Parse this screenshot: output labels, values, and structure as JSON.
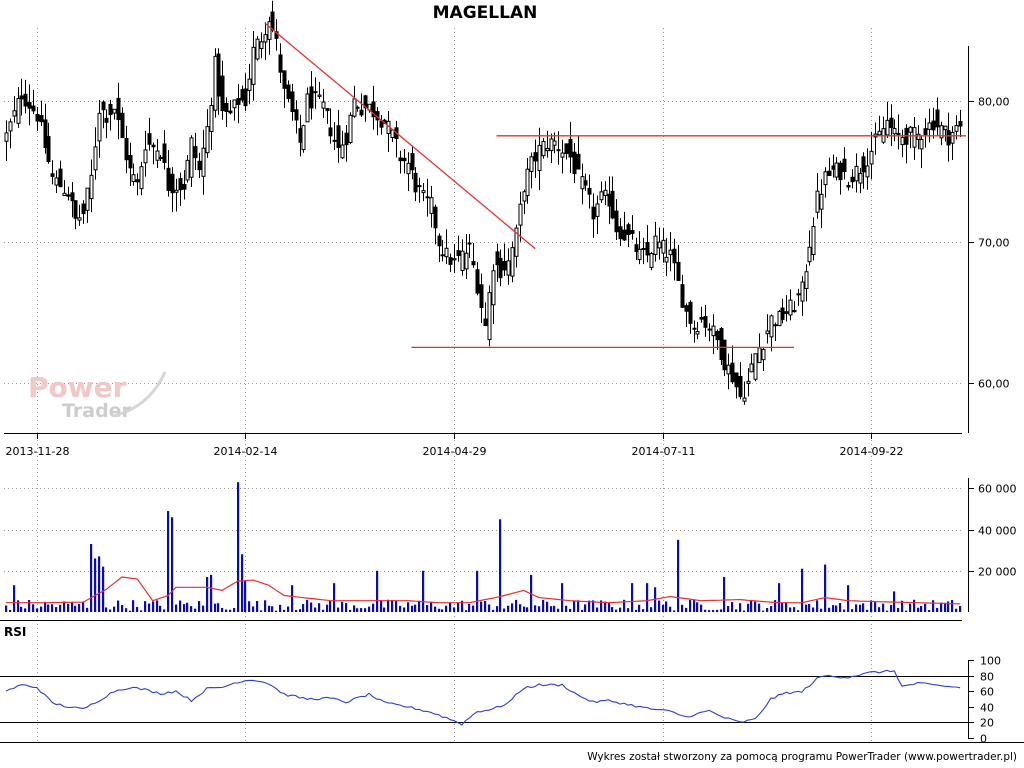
{
  "title": "MAGELLAN",
  "footer": "Wykres został stworzony za pomocą programu PowerTrader (www.powertrader.pl)",
  "watermark": {
    "line1": "Power",
    "line2": "Trader"
  },
  "colors": {
    "candle": "#000000",
    "trendline": "#e8302c",
    "volume": "#0b0bb3",
    "volume_avg": "#e8302c",
    "rsi": "#2b3fd8",
    "rsi_levels": "#000000"
  },
  "chart_data": [
    {
      "type": "candlestick",
      "title": "MAGELLAN",
      "x_ticks": [
        "2013-11-28",
        "2014-02-14",
        "2014-04-29",
        "2014-07-11",
        "2014-09-22"
      ],
      "x_tick_index": [
        8,
        62,
        116,
        170,
        224
      ],
      "y_ticks": [
        60,
        70,
        80
      ],
      "y_tick_labels": [
        "60,00",
        "70,00",
        "80,00"
      ],
      "ylim": [
        56.5,
        85
      ],
      "grid": true,
      "axis_side": "right",
      "anchors": [
        [
          0,
          77.5
        ],
        [
          4,
          80.5
        ],
        [
          8,
          79
        ],
        [
          12,
          74.5
        ],
        [
          14,
          74
        ],
        [
          16,
          73.5
        ],
        [
          18,
          71.5
        ],
        [
          20,
          72
        ],
        [
          22,
          74.5
        ],
        [
          24,
          79.5
        ],
        [
          26,
          79
        ],
        [
          28,
          79.5
        ],
        [
          32,
          75
        ],
        [
          34,
          74
        ],
        [
          36,
          77
        ],
        [
          40,
          76.5
        ],
        [
          42,
          74
        ],
        [
          46,
          74
        ],
        [
          48,
          77
        ],
        [
          50,
          75
        ],
        [
          52,
          78
        ],
        [
          54,
          82.5
        ],
        [
          56,
          79
        ],
        [
          58,
          79
        ],
        [
          60,
          80
        ],
        [
          62,
          80
        ],
        [
          64,
          83.5
        ],
        [
          66,
          84.5
        ],
        [
          68,
          86
        ],
        [
          70,
          84
        ],
        [
          72,
          80.5
        ],
        [
          74,
          79
        ],
        [
          76,
          77
        ],
        [
          78,
          80
        ],
        [
          80,
          80
        ],
        [
          82,
          79.5
        ],
        [
          84,
          78
        ],
        [
          86,
          76.5
        ],
        [
          88,
          77.5
        ],
        [
          90,
          80
        ],
        [
          92,
          79.5
        ],
        [
          94,
          79.5
        ],
        [
          96,
          79
        ],
        [
          98,
          78.5
        ],
        [
          100,
          77.5
        ],
        [
          102,
          76
        ],
        [
          104,
          75.5
        ],
        [
          106,
          74
        ],
        [
          108,
          73
        ],
        [
          110,
          72.5
        ],
        [
          112,
          70
        ],
        [
          114,
          69
        ],
        [
          116,
          68.5
        ],
        [
          118,
          69
        ],
        [
          120,
          69.5
        ],
        [
          122,
          67
        ],
        [
          124,
          64
        ],
        [
          126,
          68.5
        ],
        [
          128,
          68
        ],
        [
          130,
          68.5
        ],
        [
          132,
          70.5
        ],
        [
          134,
          74
        ],
        [
          136,
          75.5
        ],
        [
          138,
          76.5
        ],
        [
          140,
          77
        ],
        [
          142,
          77
        ],
        [
          144,
          76.5
        ],
        [
          146,
          76
        ],
        [
          148,
          74.5
        ],
        [
          150,
          73.5
        ],
        [
          152,
          72
        ],
        [
          154,
          73
        ],
        [
          156,
          73
        ],
        [
          158,
          71
        ],
        [
          160,
          70.5
        ],
        [
          162,
          70
        ],
        [
          164,
          69
        ],
        [
          166,
          69
        ],
        [
          168,
          70
        ],
        [
          170,
          69.5
        ],
        [
          172,
          69
        ],
        [
          174,
          67
        ],
        [
          176,
          65
        ],
        [
          178,
          64
        ],
        [
          180,
          64.5
        ],
        [
          182,
          64
        ],
        [
          184,
          63
        ],
        [
          186,
          61.5
        ],
        [
          188,
          60.5
        ],
        [
          190,
          59
        ],
        [
          192,
          60
        ],
        [
          194,
          62
        ],
        [
          196,
          63
        ],
        [
          198,
          64.5
        ],
        [
          200,
          64.5
        ],
        [
          202,
          65
        ],
        [
          204,
          65.5
        ],
        [
          206,
          66.5
        ],
        [
          208,
          70
        ],
        [
          210,
          73
        ],
        [
          212,
          74.5
        ],
        [
          214,
          75
        ],
        [
          216,
          75
        ],
        [
          218,
          74.5
        ],
        [
          220,
          75
        ],
        [
          222,
          75.5
        ],
        [
          224,
          76.5
        ],
        [
          226,
          77.5
        ],
        [
          228,
          78.5
        ],
        [
          230,
          77.5
        ],
        [
          232,
          77.5
        ],
        [
          234,
          77.5
        ],
        [
          236,
          77.5
        ],
        [
          238,
          78
        ],
        [
          240,
          78.5
        ],
        [
          242,
          78
        ],
        [
          244,
          77.5
        ],
        [
          246,
          78
        ]
      ],
      "last_close": 78,
      "annotations": {
        "downtrend": {
          "from": [
            67,
            85.5
          ],
          "to": [
            137,
            69.5
          ]
        },
        "resistance": {
          "level": 77.5,
          "from": 127,
          "to": 260
        },
        "support": {
          "level": 62.5,
          "from": 105,
          "to": 204
        }
      }
    },
    {
      "type": "bar",
      "series": [
        {
          "kind": "volume"
        },
        {
          "kind": "moving-average",
          "style": "line"
        }
      ],
      "y_ticks": [
        20000,
        40000,
        60000
      ],
      "y_tick_labels": [
        "20 000",
        "40 000",
        "60 000"
      ],
      "ylim": [
        0,
        66000
      ],
      "spikes": [
        [
          2,
          13000
        ],
        [
          22,
          33000
        ],
        [
          23,
          26000
        ],
        [
          24,
          27000
        ],
        [
          25,
          22000
        ],
        [
          42,
          49000
        ],
        [
          43,
          46000
        ],
        [
          52,
          17000
        ],
        [
          53,
          18000
        ],
        [
          60,
          63000
        ],
        [
          61,
          28000
        ],
        [
          62,
          15000
        ],
        [
          74,
          13000
        ],
        [
          85,
          14000
        ],
        [
          96,
          20000
        ],
        [
          108,
          20000
        ],
        [
          122,
          20000
        ],
        [
          128,
          45000
        ],
        [
          136,
          18000
        ],
        [
          144,
          14000
        ],
        [
          162,
          14000
        ],
        [
          166,
          14000
        ],
        [
          168,
          12000
        ],
        [
          174,
          35000
        ],
        [
          186,
          17000
        ],
        [
          200,
          14000
        ],
        [
          206,
          21000
        ],
        [
          212,
          23000
        ],
        [
          218,
          13000
        ],
        [
          230,
          10000
        ]
      ],
      "avg_anchors": [
        [
          0,
          4500
        ],
        [
          10,
          4500
        ],
        [
          20,
          4800
        ],
        [
          26,
          11000
        ],
        [
          30,
          17000
        ],
        [
          34,
          16000
        ],
        [
          38,
          5500
        ],
        [
          42,
          8000
        ],
        [
          44,
          12000
        ],
        [
          52,
          12000
        ],
        [
          56,
          10500
        ],
        [
          60,
          15000
        ],
        [
          64,
          15500
        ],
        [
          68,
          13000
        ],
        [
          72,
          8000
        ],
        [
          84,
          5500
        ],
        [
          96,
          5500
        ],
        [
          104,
          5500
        ],
        [
          112,
          4500
        ],
        [
          120,
          4500
        ],
        [
          128,
          7500
        ],
        [
          134,
          10500
        ],
        [
          138,
          7000
        ],
        [
          146,
          5500
        ],
        [
          156,
          4500
        ],
        [
          166,
          5500
        ],
        [
          172,
          7500
        ],
        [
          180,
          5500
        ],
        [
          190,
          6000
        ],
        [
          200,
          4500
        ],
        [
          206,
          4500
        ],
        [
          212,
          7000
        ],
        [
          218,
          5500
        ],
        [
          226,
          5000
        ],
        [
          236,
          4500
        ],
        [
          246,
          4000
        ]
      ]
    },
    {
      "type": "line",
      "title": "RSI",
      "y_ticks": [
        0,
        20,
        40,
        60,
        80,
        100
      ],
      "y_tick_labels": [
        "0",
        "20",
        "40",
        "60",
        "80",
        "100"
      ],
      "ylim": [
        0,
        100
      ],
      "levels": [
        20,
        80
      ],
      "anchors": [
        [
          0,
          60
        ],
        [
          4,
          68
        ],
        [
          8,
          65
        ],
        [
          12,
          45
        ],
        [
          16,
          40
        ],
        [
          20,
          37
        ],
        [
          24,
          48
        ],
        [
          28,
          60
        ],
        [
          32,
          65
        ],
        [
          36,
          62
        ],
        [
          40,
          57
        ],
        [
          44,
          60
        ],
        [
          48,
          48
        ],
        [
          52,
          63
        ],
        [
          56,
          65
        ],
        [
          60,
          72
        ],
        [
          64,
          75
        ],
        [
          68,
          70
        ],
        [
          72,
          56
        ],
        [
          78,
          50
        ],
        [
          84,
          51
        ],
        [
          88,
          46
        ],
        [
          94,
          56
        ],
        [
          98,
          45
        ],
        [
          104,
          40
        ],
        [
          110,
          33
        ],
        [
          114,
          26
        ],
        [
          118,
          18
        ],
        [
          122,
          34
        ],
        [
          126,
          37
        ],
        [
          130,
          45
        ],
        [
          134,
          64
        ],
        [
          138,
          68
        ],
        [
          144,
          68
        ],
        [
          148,
          55
        ],
        [
          152,
          46
        ],
        [
          156,
          48
        ],
        [
          160,
          44
        ],
        [
          166,
          38
        ],
        [
          172,
          34
        ],
        [
          176,
          27
        ],
        [
          182,
          35
        ],
        [
          186,
          26
        ],
        [
          190,
          20
        ],
        [
          194,
          24
        ],
        [
          198,
          50
        ],
        [
          202,
          58
        ],
        [
          206,
          59
        ],
        [
          210,
          76
        ],
        [
          212,
          80
        ],
        [
          214,
          79
        ],
        [
          218,
          78
        ],
        [
          224,
          84
        ],
        [
          230,
          86
        ],
        [
          232,
          66
        ],
        [
          236,
          70
        ],
        [
          240,
          68
        ],
        [
          246,
          65
        ]
      ]
    }
  ]
}
